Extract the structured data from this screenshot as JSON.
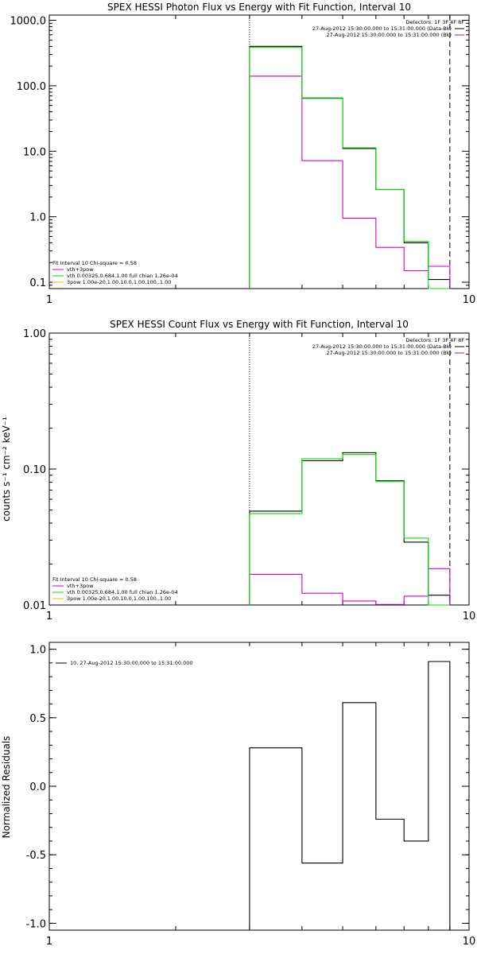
{
  "chart_data": [
    {
      "id": "photon",
      "type": "line",
      "title": "SPEX HESSI Photon Flux vs Energy with Fit Function, Interval 10",
      "ylabel": "",
      "x_scale": "log",
      "y_scale": "log",
      "xlim": [
        1,
        10
      ],
      "ylim": [
        0.08,
        1200
      ],
      "x_ticks": [
        {
          "v": 1,
          "label": "1"
        },
        {
          "v": 10,
          "label": "10"
        }
      ],
      "y_ticks": [
        {
          "v": 0.1,
          "label": "0.1"
        },
        {
          "v": 1,
          "label": "1.0"
        },
        {
          "v": 10,
          "label": "10.0"
        },
        {
          "v": 100,
          "label": "100.0"
        },
        {
          "v": 1000,
          "label": "1000.0"
        }
      ],
      "vlines": [
        {
          "x": 3.0,
          "style": "dotted"
        },
        {
          "x": 9.0,
          "style": "dashed"
        }
      ],
      "edges": [
        3.0,
        4.0,
        5.0,
        6.0,
        7.0,
        8.0,
        9.0
      ],
      "series": [
        {
          "name": "",
          "color": "#000000",
          "values": [
            400,
            65,
            11,
            2.6,
            0.4,
            0.11
          ]
        },
        {
          "name": "",
          "color": "#cc00cc",
          "values": [
            140,
            7.2,
            0.95,
            0.34,
            0.15,
            0.175
          ]
        },
        {
          "name": "",
          "color": "#00dd00",
          "values": [
            385,
            64,
            11.3,
            2.6,
            0.42,
            0.003
          ]
        }
      ],
      "legend_tr": {
        "lines": [
          {
            "text": "Detectors: 1F 3F 4F 8F",
            "color": ""
          },
          {
            "text": "27-Aug-2012 15:30:00.000 to 15:31:00.000 (Data-Bk)",
            "color": "#000000"
          },
          {
            "text": "27-Aug-2012 15:30:00.000 to 15:31:00.000 (Bk)",
            "color": "#cc00cc"
          }
        ]
      },
      "legend_bl": {
        "lines": [
          {
            "text": "Fit Interval 10   Chi-square = 0.58",
            "color": ""
          },
          {
            "text": "vth+3pow",
            "color": "#cc00cc"
          },
          {
            "text": "vth 0.00325,0.684,1.00  full chian 1.26e-04",
            "color": "#00dd00"
          },
          {
            "text": "3pow 1.00e-20,1.00,10.0,1.00,100.,1.00",
            "color": "#e8c000"
          }
        ]
      }
    },
    {
      "id": "count",
      "type": "line",
      "title": "SPEX HESSI Count Flux vs Energy with Fit Function, Interval 10",
      "ylabel": "counts s⁻¹ cm⁻² keV⁻¹",
      "x_scale": "log",
      "y_scale": "log",
      "xlim": [
        1,
        10
      ],
      "ylim": [
        0.01,
        1.0
      ],
      "x_ticks": [
        {
          "v": 1,
          "label": "1"
        },
        {
          "v": 10,
          "label": "10"
        }
      ],
      "y_ticks": [
        {
          "v": 0.01,
          "label": "0.01"
        },
        {
          "v": 0.1,
          "label": "0.10"
        },
        {
          "v": 1.0,
          "label": "1.00"
        }
      ],
      "vlines": [
        {
          "x": 3.0,
          "style": "dotted"
        },
        {
          "x": 9.0,
          "style": "dashed"
        }
      ],
      "edges": [
        3.0,
        4.0,
        5.0,
        6.0,
        7.0,
        8.0,
        9.0
      ],
      "series": [
        {
          "name": "",
          "color": "#000000",
          "values": [
            0.049,
            0.115,
            0.132,
            0.082,
            0.029,
            0.0118
          ]
        },
        {
          "name": "",
          "color": "#cc00cc",
          "values": [
            0.0168,
            0.0122,
            0.0107,
            0.0101,
            0.0116,
            0.0185
          ]
        },
        {
          "name": "",
          "color": "#00dd00",
          "values": [
            0.047,
            0.119,
            0.128,
            0.081,
            0.031,
            0.0001
          ]
        }
      ],
      "legend_tr": {
        "lines": [
          {
            "text": "Detectors: 1F 3F 4F 8F",
            "color": ""
          },
          {
            "text": "27-Aug-2012 15:30:00.000 to 15:31:00.000 (Data-Bk)",
            "color": "#000000"
          },
          {
            "text": "27-Aug-2012 15:30:00.000 to 15:31:00.000 (Bk)",
            "color": "#cc00cc"
          }
        ]
      },
      "legend_bl": {
        "lines": [
          {
            "text": "Fit Interval 10   Chi-square = 0.58",
            "color": ""
          },
          {
            "text": "vth+3pow",
            "color": "#cc00cc"
          },
          {
            "text": "vth 0.00325,0.684,1.00  full chian 1.26e-04",
            "color": "#00dd00"
          },
          {
            "text": "3pow 1.00e-20,1.00,10.0,1.00,100.,1.00",
            "color": "#e8c000"
          }
        ]
      }
    },
    {
      "id": "resid",
      "type": "line",
      "title": "",
      "ylabel": "Normalized Residuals",
      "x_scale": "log",
      "y_scale": "linear",
      "xlim": [
        1,
        10
      ],
      "ylim": [
        -1.05,
        1.05
      ],
      "x_ticks": [
        {
          "v": 1,
          "label": "1"
        },
        {
          "v": 10,
          "label": "10"
        }
      ],
      "y_ticks": [
        {
          "v": -1.0,
          "label": "-1.0"
        },
        {
          "v": -0.5,
          "label": "-0.5"
        },
        {
          "v": 0.0,
          "label": "0.0"
        },
        {
          "v": 0.5,
          "label": "0.5"
        },
        {
          "v": 1.0,
          "label": "1.0"
        }
      ],
      "vlines": [],
      "edges": [
        3.0,
        4.0,
        5.0,
        6.0,
        7.0,
        8.0,
        9.0
      ],
      "series": [
        {
          "name": "",
          "color": "#000000",
          "values": [
            0.28,
            -0.56,
            0.61,
            -0.24,
            -0.4,
            0.91
          ]
        }
      ],
      "legend_tl": {
        "lines": [
          {
            "text": "10. 27-Aug-2012 15:30:00.000 to 15:31:00.000",
            "color": "#000000"
          }
        ]
      }
    }
  ]
}
